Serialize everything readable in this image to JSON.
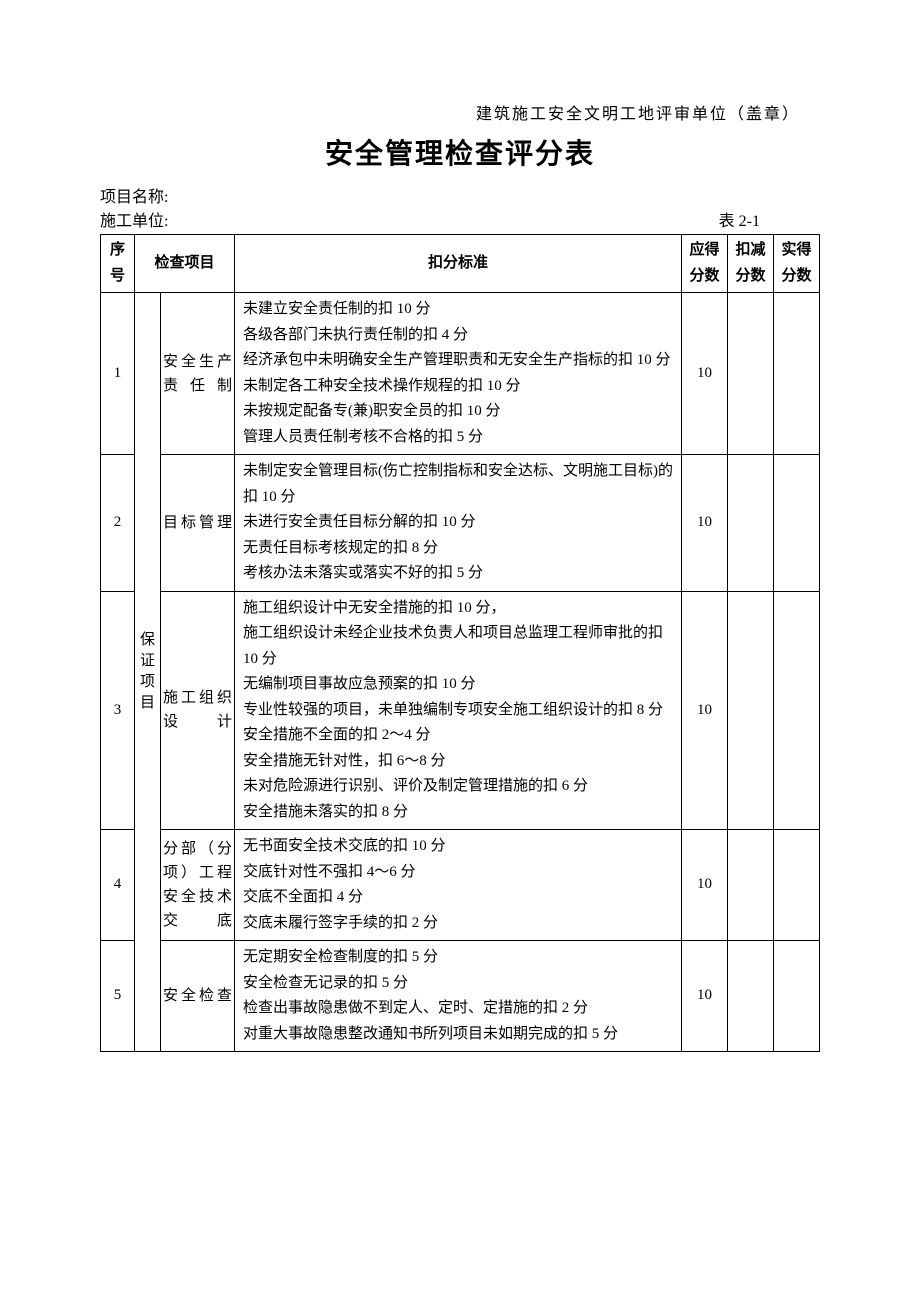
{
  "header_note": "建筑施工安全文明工地评审单位（盖章）",
  "title": "安全管理检查评分表",
  "project_label": "项目名称:",
  "unit_label": "施工单位:",
  "table_no": "表 2-1",
  "columns": {
    "seq": "序号",
    "check_item": "检查项目",
    "criteria": "扣分标准",
    "should_score": "应得分数",
    "deduct_score": "扣减分数",
    "actual_score": "实得分数"
  },
  "category": "保证项目",
  "rows": [
    {
      "seq": "1",
      "item": "安全生产责任制",
      "criteria": "未建立安全责任制的扣 10 分\n各级各部门未执行责任制的扣 4 分\n经济承包中未明确安全生产管理职责和无安全生产指标的扣 10 分\n未制定各工种安全技术操作规程的扣 10 分\n未按规定配备专(兼)职安全员的扣 10 分\n管理人员责任制考核不合格的扣 5 分",
      "should": "10"
    },
    {
      "seq": "2",
      "item": "目标管理",
      "criteria": "未制定安全管理目标(伤亡控制指标和安全达标、文明施工目标)的扣 10 分\n未进行安全责任目标分解的扣 10 分\n无责任目标考核规定的扣 8 分\n考核办法未落实或落实不好的扣 5 分",
      "should": "10"
    },
    {
      "seq": "3",
      "item": "施工组织设　　计",
      "criteria": "施工组织设计中无安全措施的扣 10 分，\n施工组织设计未经企业技术负责人和项目总监理工程师审批的扣 10 分\n无编制项目事故应急预案的扣 10 分\n专业性较强的项目，未单独编制专项安全施工组织设计的扣 8 分\n安全措施不全面的扣 2～4 分\n安全措施无针对性，扣 6～8 分\n未对危险源进行识别、评价及制定管理措施的扣 6 分\n安全措施未落实的扣 8 分",
      "should": "10"
    },
    {
      "seq": "4",
      "item": "分部（分项）工程安全技术交　　底",
      "criteria": "无书面安全技术交底的扣 10 分\n交底针对性不强扣 4～6 分\n交底不全面扣 4 分\n交底未履行签字手续的扣 2 分",
      "should": "10"
    },
    {
      "seq": "5",
      "item": "安全检查",
      "criteria": "无定期安全检查制度的扣 5 分\n安全检查无记录的扣 5 分\n检查出事故隐患做不到定人、定时、定措施的扣 2 分\n对重大事故隐患整改通知书所列项目未如期完成的扣 5 分",
      "should": "10"
    }
  ],
  "colors": {
    "text": "#000000",
    "background": "#ffffff",
    "border": "#000000"
  },
  "fonts": {
    "body_family": "SimSun",
    "title_family": "SimHei",
    "body_size_pt": 12,
    "title_size_pt": 22
  }
}
